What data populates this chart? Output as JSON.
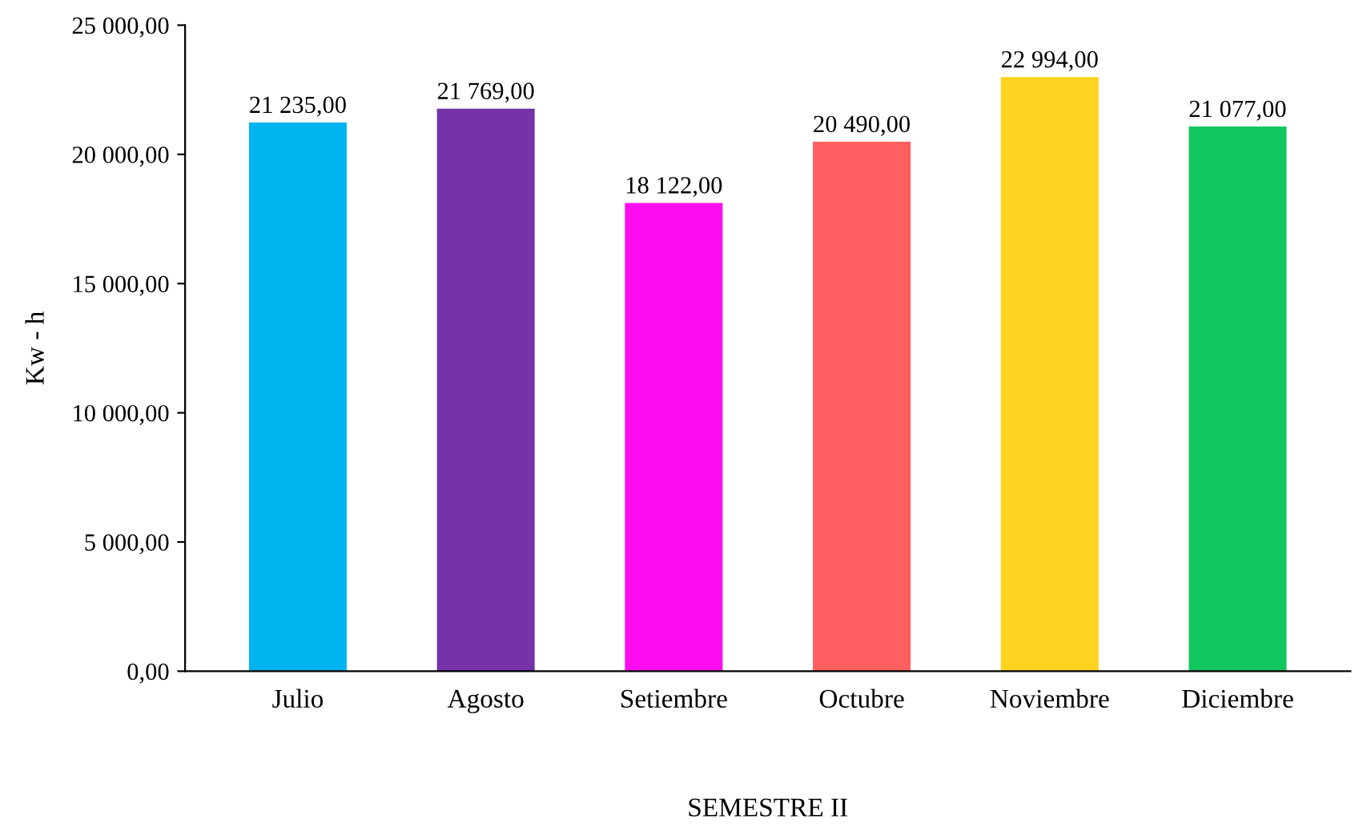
{
  "chart_data": {
    "type": "bar",
    "xlabel": "SEMESTRE II",
    "ylabel": "Kw - h",
    "categories": [
      "Julio",
      "Agosto",
      "Setiembre",
      "Octubre",
      "Noviembre",
      "Diciembre"
    ],
    "values": [
      21235,
      21769,
      18122,
      20490,
      22994,
      21077
    ],
    "colors": [
      "#00b4f0",
      "#7433a6",
      "#ff0df0",
      "#ff5f5f",
      "#ffd31f",
      "#12c760"
    ],
    "value_labels": [
      "21 235,00",
      "21 769,00",
      "18 122,00",
      "20 490,00",
      "22 994,00",
      "21 077,00"
    ],
    "ylim": [
      0,
      25000
    ],
    "yticks": [
      {
        "value": 0,
        "label": "0,00"
      },
      {
        "value": 5000,
        "label": "5 000,00"
      },
      {
        "value": 10000,
        "label": "10 000,00"
      },
      {
        "value": 15000,
        "label": "15 000,00"
      },
      {
        "value": 20000,
        "label": "20 000,00"
      },
      {
        "value": 25000,
        "label": "25 000,00"
      }
    ],
    "grid": false,
    "legend": false
  }
}
